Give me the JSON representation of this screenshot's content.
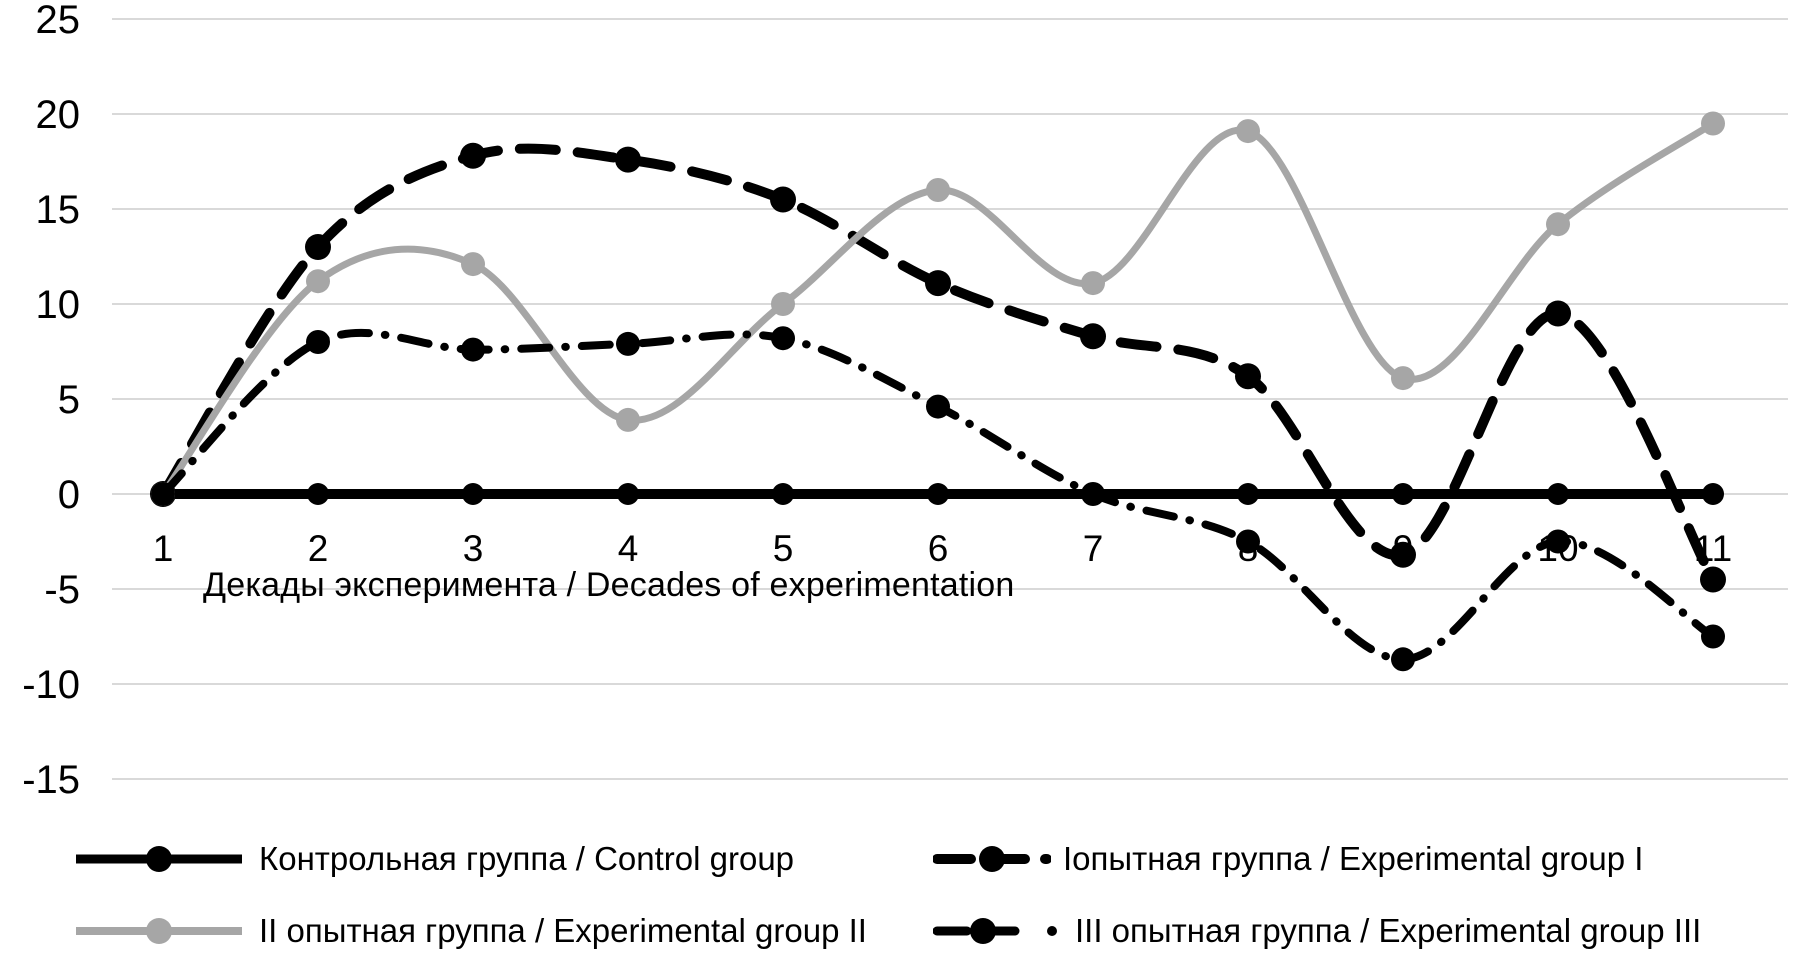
{
  "chart_data": {
    "type": "line",
    "smoothed": true,
    "x": [
      1,
      2,
      3,
      4,
      5,
      6,
      7,
      8,
      9,
      10,
      11
    ],
    "x_tick_labels": [
      "1",
      "2",
      "3",
      "4",
      "5",
      "6",
      "7",
      "8",
      "9",
      "10",
      "11"
    ],
    "xlabel": "Декады эксперимента / Decades of experimentation",
    "ylabel": "",
    "ylim": [
      -15,
      25
    ],
    "y_ticks": [
      25,
      20,
      15,
      10,
      5,
      0,
      -5,
      -10,
      -15
    ],
    "grid": true,
    "grid_color": "#d9d9d9",
    "axis_text_color": "#000000",
    "legend_position": "bottom",
    "series": [
      {
        "name": "Контрольная группа / Control group",
        "color": "#000000",
        "style": "solid",
        "marker": "circle",
        "values": [
          0,
          0,
          0,
          0,
          0,
          0,
          0,
          0,
          0,
          0,
          0
        ]
      },
      {
        "name": "Iопытная группа / Experimental group I",
        "color": "#000000",
        "style": "long-dash",
        "marker": "circle",
        "values": [
          0,
          13,
          17.8,
          17.6,
          15.5,
          11.1,
          8.3,
          6.2,
          -3.2,
          9.5,
          -4.5
        ]
      },
      {
        "name": "II опытная группа / Experimental group II",
        "color": "#a6a6a6",
        "style": "solid",
        "marker": "circle",
        "values": [
          0,
          11.2,
          12.1,
          3.9,
          10,
          16,
          11.1,
          19.1,
          6.1,
          14.2,
          19.5
        ]
      },
      {
        "name": "III опытная группа / Experimental group III",
        "color": "#000000",
        "style": "dash-dot",
        "marker": "circle",
        "values": [
          0,
          8,
          7.6,
          7.9,
          8.2,
          4.6,
          0,
          -2.5,
          -8.7,
          -2.5,
          -7.5
        ]
      }
    ]
  }
}
